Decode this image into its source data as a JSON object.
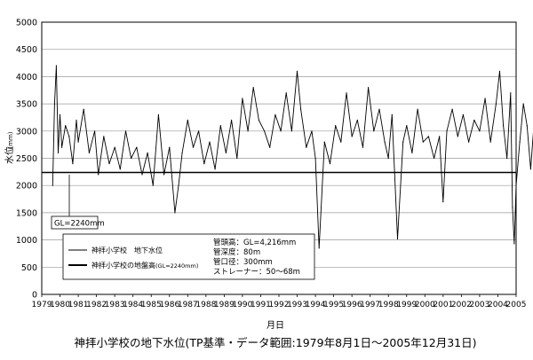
{
  "chart_data": {
    "type": "line",
    "xlabel": "月日",
    "ylabel": "水位",
    "ylabel_unit": "(mm)",
    "ylim": [
      0,
      5000
    ],
    "yticks": [
      "0",
      "500",
      "1000",
      "1500",
      "2000",
      "2500",
      "3000",
      "3500",
      "4000",
      "4500",
      "5000"
    ],
    "xticks": [
      "1979",
      "1980",
      "1981",
      "1982",
      "1983",
      "1984",
      "1985",
      "1986",
      "1987",
      "1988",
      "1989",
      "1990",
      "1991",
      "1992",
      "1993",
      "1994",
      "1995",
      "1996",
      "1997",
      "1998",
      "1999",
      "2000",
      "2001",
      "2002",
      "2003",
      "2004",
      "2005"
    ],
    "xlim": [
      1979,
      2005
    ],
    "grid": "horizontal",
    "caption": "神拝小学校の地下水位(TP基準・データ範囲:1979年8月1日～2005年12月31日)",
    "series": [
      {
        "name": "神拝小学校　地下水位",
        "x": [
          1979.6,
          1979.7,
          1979.8,
          1979.9,
          1980.0,
          1980.1,
          1980.3,
          1980.5,
          1980.7,
          1980.9,
          1981.0,
          1981.3,
          1981.6,
          1981.9,
          1982.1,
          1982.4,
          1982.7,
          1983.0,
          1983.3,
          1983.6,
          1983.9,
          1984.2,
          1984.5,
          1984.8,
          1985.1,
          1985.4,
          1985.7,
          1986.0,
          1986.3,
          1986.5,
          1986.7,
          1987.0,
          1987.3,
          1987.6,
          1987.9,
          1988.2,
          1988.5,
          1988.8,
          1989.1,
          1989.4,
          1989.7,
          1990.0,
          1990.3,
          1990.6,
          1990.9,
          1991.2,
          1991.5,
          1991.8,
          1992.1,
          1992.4,
          1992.7,
          1993.0,
          1993.2,
          1993.5,
          1993.8,
          1994.0,
          1994.2,
          1994.5,
          1994.8,
          1995.1,
          1995.4,
          1995.7,
          1996.0,
          1996.3,
          1996.6,
          1996.9,
          1997.2,
          1997.5,
          1997.8,
          1998.0,
          1998.2,
          1998.5,
          1998.8,
          1999.0,
          1999.3,
          1999.6,
          1999.9,
          2000.2,
          2000.5,
          2000.8,
          2001.0,
          2001.2,
          2001.5,
          2001.8,
          2002.1,
          2002.4,
          2002.7,
          2003.0,
          2003.3,
          2003.6,
          2003.9,
          2004.1,
          2004.3,
          2004.5,
          2004.7,
          2004.8,
          2004.9,
          2005.0,
          2005.2,
          2005.4,
          2005.6,
          2005.8,
          2005.95
        ],
        "y": [
          2000,
          3500,
          4200,
          2600,
          3300,
          2700,
          3100,
          2900,
          2400,
          3200,
          2800,
          3400,
          2600,
          3000,
          2200,
          2900,
          2400,
          2700,
          2300,
          3000,
          2500,
          2700,
          2200,
          2600,
          2000,
          3300,
          2200,
          2700,
          1500,
          2000,
          2600,
          3200,
          2700,
          3000,
          2400,
          2800,
          2300,
          3100,
          2600,
          3200,
          2500,
          3600,
          3000,
          3800,
          3200,
          3000,
          2700,
          3300,
          3000,
          3700,
          3000,
          4100,
          3400,
          2700,
          3000,
          2500,
          850,
          2800,
          2400,
          3100,
          2800,
          3700,
          2900,
          3200,
          2700,
          3800,
          3000,
          3400,
          2800,
          2500,
          3300,
          1020,
          2800,
          3100,
          2600,
          3400,
          2800,
          2900,
          2500,
          2900,
          1700,
          3000,
          3400,
          2900,
          3300,
          2800,
          3200,
          3000,
          3600,
          2800,
          3500,
          4100,
          3100,
          2500,
          3700,
          1600,
          930,
          2000,
          2800,
          3500,
          3100,
          2300,
          3000
        ]
      },
      {
        "name": "神拝小学校の地盤高",
        "name_suffix": "(GL=2240mm)",
        "x": [
          1979,
          2005
        ],
        "y": [
          2240,
          2240
        ]
      }
    ],
    "annotations": {
      "gl_label": "GL=2240mm",
      "info_lines": [
        "管頭高：GL=4,216mm",
        "管深度：80m",
        "管口径：300mm",
        "ストレーナー：50～68m"
      ]
    }
  }
}
